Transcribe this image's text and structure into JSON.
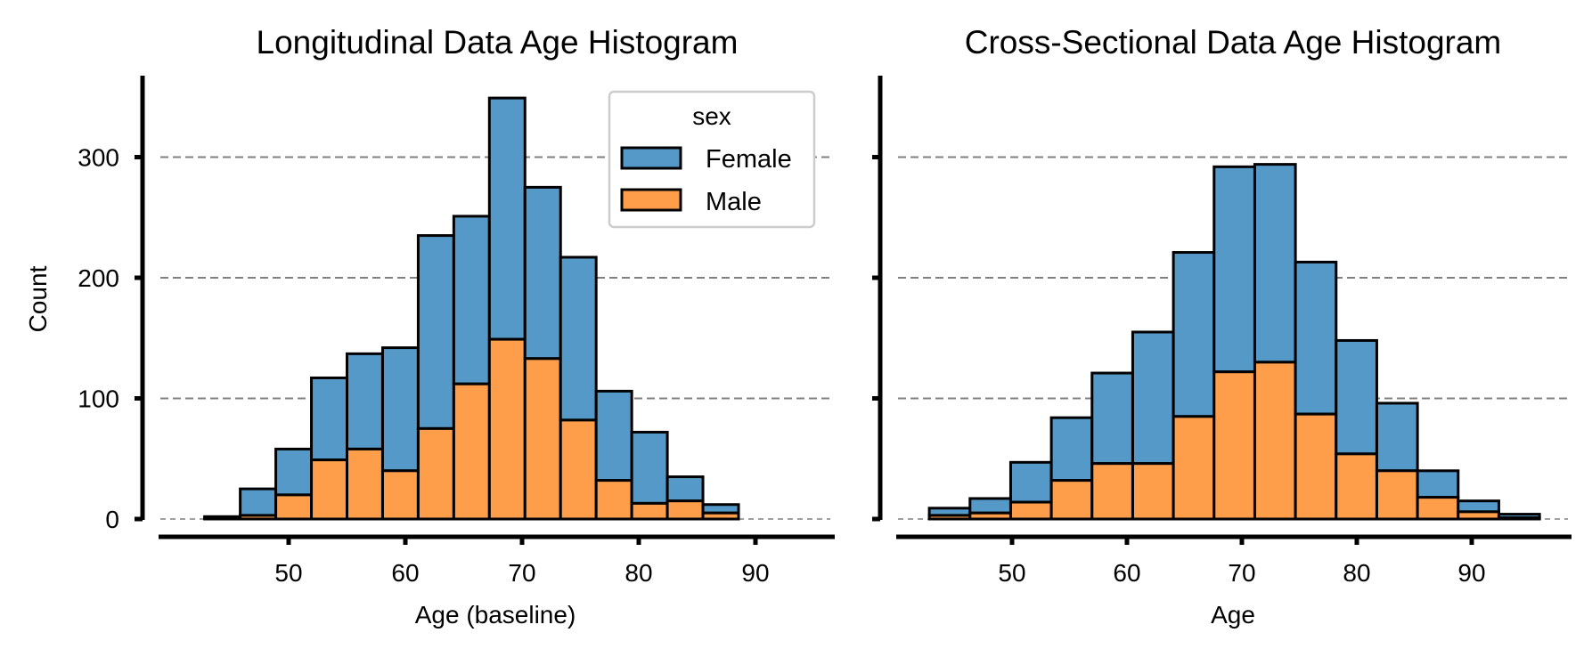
{
  "chart_data": [
    {
      "type": "bar",
      "stacked": true,
      "title": "Longitudinal Data Age Histogram",
      "xlabel": "Age (baseline)",
      "ylabel": "Count",
      "xlim": [
        40,
        91
      ],
      "ylim": [
        -10,
        365
      ],
      "xticks": [
        "50",
        "60",
        "70",
        "80",
        "90"
      ],
      "yticks": [
        "0",
        "100",
        "200",
        "300"
      ],
      "grid": "horizontal dashed",
      "bin_edges": [
        42.8,
        45.85,
        48.9,
        51.95,
        55.0,
        58.05,
        61.1,
        64.15,
        67.2,
        70.25,
        73.3,
        76.35,
        79.4,
        82.45,
        85.5,
        88.55
      ],
      "series": [
        {
          "name": "Male",
          "color": "#ff9e4a",
          "values": [
            1,
            3,
            20,
            49,
            58,
            40,
            75,
            112,
            149,
            133,
            82,
            32,
            13,
            15,
            5
          ]
        },
        {
          "name": "Female",
          "color": "#5599c8",
          "values": [
            1,
            22,
            38,
            68,
            79,
            102,
            160,
            139,
            200,
            142,
            135,
            74,
            59,
            20,
            7
          ]
        }
      ],
      "legend": {
        "title": "sex",
        "position": "top-right",
        "entries": [
          "Female",
          "Male"
        ]
      }
    },
    {
      "type": "bar",
      "stacked": true,
      "title": "Cross-Sectional Data Age Histogram",
      "xlabel": "Age",
      "ylabel": "",
      "xlim": [
        40,
        97
      ],
      "ylim": [
        -10,
        365
      ],
      "xticks": [
        "50",
        "60",
        "70",
        "80",
        "90"
      ],
      "yticks": [
        "0",
        "100",
        "200",
        "300"
      ],
      "grid": "horizontal dashed",
      "bin_edges": [
        42.8,
        46.34,
        49.88,
        53.42,
        56.96,
        60.5,
        64.04,
        67.58,
        71.12,
        74.66,
        78.2,
        81.74,
        85.28,
        88.82,
        92.36,
        95.9
      ],
      "series": [
        {
          "name": "Male",
          "color": "#ff9e4a",
          "values": [
            3,
            5,
            14,
            32,
            46,
            46,
            85,
            122,
            130,
            87,
            54,
            40,
            18,
            6,
            1
          ]
        },
        {
          "name": "Female",
          "color": "#5599c8",
          "values": [
            6,
            12,
            33,
            52,
            75,
            109,
            136,
            170,
            164,
            126,
            94,
            56,
            22,
            9,
            3
          ]
        }
      ]
    }
  ]
}
